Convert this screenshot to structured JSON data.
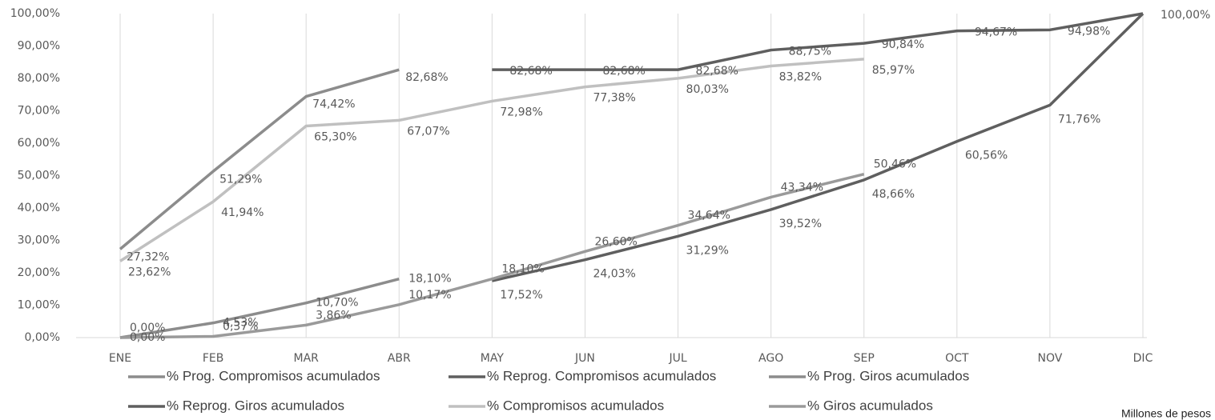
{
  "chart_data": {
    "type": "line",
    "note": "Millones de pesos",
    "categories": [
      "ENE",
      "FEB",
      "MAR",
      "ABR",
      "MAY",
      "JUN",
      "JUL",
      "AGO",
      "SEP",
      "OCT",
      "NOV",
      "DIC"
    ],
    "ylim": [
      0,
      100
    ],
    "yticks": [
      {
        "value": 0,
        "label": "0,00%"
      },
      {
        "value": 10,
        "label": "10,00%"
      },
      {
        "value": 20,
        "label": "20,00%"
      },
      {
        "value": 30,
        "label": "30,00%"
      },
      {
        "value": 40,
        "label": "40,00%"
      },
      {
        "value": 50,
        "label": "50,00%"
      },
      {
        "value": 60,
        "label": "60,00%"
      },
      {
        "value": 70,
        "label": "70,00%"
      },
      {
        "value": 80,
        "label": "80,00%"
      },
      {
        "value": 90,
        "label": "90,00%"
      },
      {
        "value": 100,
        "label": "100,00%"
      }
    ],
    "grid": "x",
    "series": [
      {
        "name": "% Prog. Compromisos acumulados",
        "color": "#8c8c8c",
        "values": [
          27.32,
          51.29,
          74.42,
          82.68,
          null,
          null,
          null,
          null,
          null,
          null,
          null,
          null
        ],
        "value_labels": [
          "27,32%",
          "51,29%",
          "74,42%",
          "82,68%",
          null,
          null,
          null,
          null,
          null,
          null,
          null,
          null
        ]
      },
      {
        "name": "% Reprog. Compromisos acumulados",
        "color": "#5f5f5f",
        "values": [
          null,
          null,
          null,
          null,
          82.68,
          82.68,
          82.68,
          88.75,
          90.84,
          94.67,
          94.98,
          100
        ],
        "value_labels": [
          null,
          null,
          null,
          null,
          "82,68%",
          "82,68%",
          "82,68%",
          "88,75%",
          "90,84%",
          "94,67%",
          "94,98%",
          "100,00%"
        ]
      },
      {
        "name": "% Prog. Giros acumulados",
        "color": "#8c8c8c",
        "values": [
          0,
          4.53,
          10.7,
          18.1,
          null,
          null,
          null,
          null,
          null,
          null,
          null,
          null
        ],
        "value_labels": [
          "0,00%",
          "4,53%",
          "10,70%",
          "18,10%",
          null,
          null,
          null,
          null,
          null,
          null,
          null,
          null
        ]
      },
      {
        "name": "% Reprog. Giros acumulados",
        "color": "#5f5f5f",
        "values": [
          null,
          null,
          null,
          null,
          17.52,
          24.03,
          31.29,
          39.52,
          48.66,
          60.56,
          71.76,
          100
        ],
        "value_labels": [
          null,
          null,
          null,
          null,
          "17,52%",
          "24,03%",
          "31,29%",
          "39,52%",
          "48,66%",
          "60,56%",
          "71,76%",
          null
        ]
      },
      {
        "name": "% Compromisos acumulados",
        "color": "#c0c0c0",
        "values": [
          23.62,
          41.94,
          65.3,
          67.07,
          72.98,
          77.38,
          80.03,
          83.82,
          85.97,
          null,
          null,
          null
        ],
        "value_labels": [
          "23,62%",
          "41,94%",
          "65,30%",
          "67,07%",
          "72,98%",
          "77,38%",
          "80,03%",
          "83,82%",
          "85,97%",
          null,
          null,
          null
        ]
      },
      {
        "name": "% Giros acumulados",
        "color": "#9a9a9a",
        "values": [
          0,
          0.37,
          3.86,
          10.17,
          18.1,
          26.6,
          34.64,
          43.34,
          50.46,
          null,
          null,
          null
        ],
        "value_labels": [
          "0,00%",
          "0,37%",
          "3,86%",
          "10,17%",
          "18,10%",
          "26,60%",
          "34,64%",
          "43,34%",
          "50,46%",
          null,
          null,
          null
        ]
      }
    ]
  }
}
